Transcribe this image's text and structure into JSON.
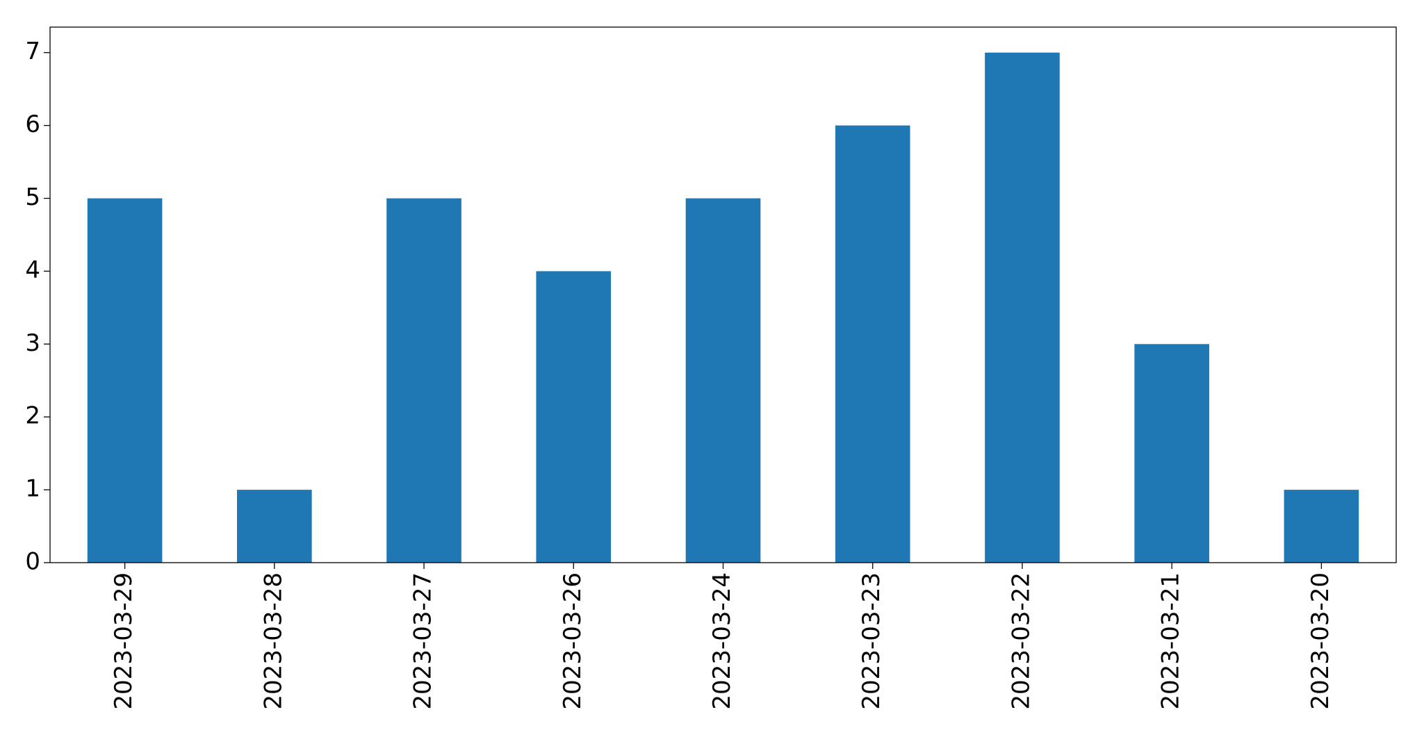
{
  "chart_data": {
    "type": "bar",
    "categories": [
      "2023-03-29",
      "2023-03-28",
      "2023-03-27",
      "2023-03-26",
      "2023-03-24",
      "2023-03-23",
      "2023-03-22",
      "2023-03-21",
      "2023-03-20"
    ],
    "values": [
      5,
      1,
      5,
      4,
      5,
      6,
      7,
      3,
      1
    ],
    "color": "#1f77b4",
    "ylim": [
      0,
      7.35
    ],
    "yticks": [
      0,
      1,
      2,
      3,
      4,
      5,
      6,
      7
    ],
    "grid": false
  }
}
